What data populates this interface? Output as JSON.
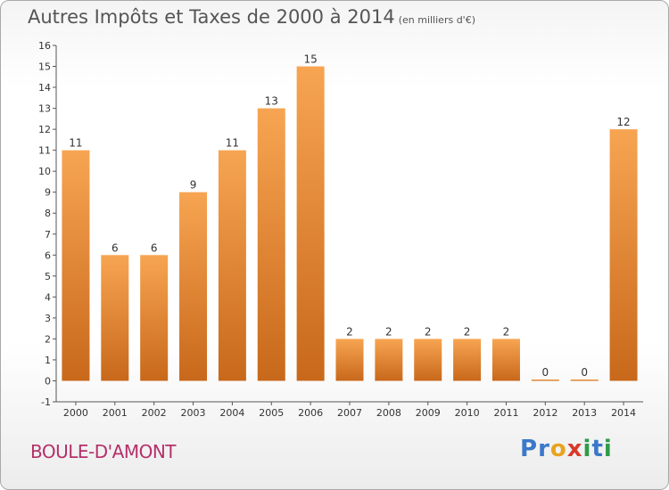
{
  "header": {
    "title": "Autres Impôts et Taxes de 2000 à 2014",
    "unit": "(en milliers d'€)"
  },
  "footer": {
    "place": "BOULE-D'AMONT",
    "brand_letters": [
      {
        "char": "P",
        "color": "#3a78c9"
      },
      {
        "char": "r",
        "color": "#3a78c9"
      },
      {
        "char": "o",
        "color": "#e8a320"
      },
      {
        "char": "x",
        "color": "#d93a2b"
      },
      {
        "char": "i",
        "color": "#2e9c4a"
      },
      {
        "char": "t",
        "color": "#3a78c9"
      },
      {
        "char": "i",
        "color": "#2e9c4a"
      }
    ]
  },
  "colors": {
    "bar_top": "#f7a552",
    "bar_bottom": "#c8681a",
    "axis": "#555555"
  },
  "chart_data": {
    "type": "bar",
    "categories": [
      "2000",
      "2001",
      "2002",
      "2003",
      "2004",
      "2005",
      "2006",
      "2007",
      "2008",
      "2009",
      "2010",
      "2011",
      "2012",
      "2013",
      "2014"
    ],
    "values": [
      11,
      6,
      6,
      9,
      11,
      13,
      15,
      2,
      2,
      2,
      2,
      2,
      0,
      0,
      12
    ],
    "data_labels": [
      "11",
      "6",
      "6",
      "9",
      "11",
      "13",
      "15",
      "2",
      "2",
      "2",
      "2",
      "2",
      "0",
      "0",
      "12"
    ],
    "ylim": [
      -1,
      16
    ],
    "yticks": [
      -1,
      0,
      1,
      2,
      3,
      4,
      5,
      6,
      7,
      8,
      9,
      10,
      11,
      12,
      13,
      14,
      15,
      16
    ],
    "ytick_labels": [
      "-1",
      "0",
      "1",
      "2",
      "3",
      "4",
      "5",
      "6",
      "7",
      "8",
      "9",
      "10",
      "11",
      "12",
      "13",
      "14",
      "15",
      "16"
    ],
    "grid": false,
    "legend": "none"
  }
}
